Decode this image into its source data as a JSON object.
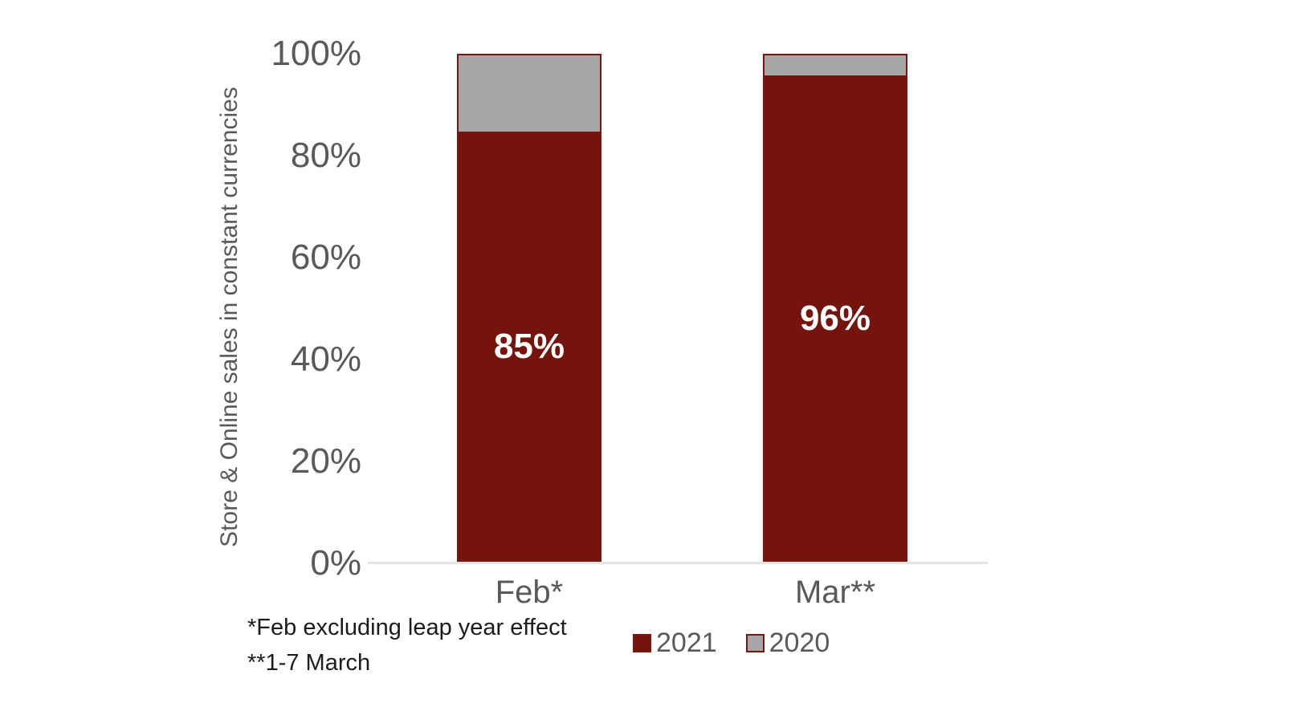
{
  "chart_data": {
    "type": "bar",
    "subtype": "stacked-100-percent",
    "title": "",
    "ylabel": "Store & Online sales in constant currencies",
    "xlabel": "",
    "categories": [
      "Feb*",
      "Mar**"
    ],
    "series": [
      {
        "name": "2021",
        "values": [
          85,
          96
        ],
        "color": "#74140c"
      },
      {
        "name": "2020",
        "values": [
          15,
          4
        ],
        "color": "#a6a6a6"
      }
    ],
    "data_labels": [
      "85%",
      "96%"
    ],
    "yticks": [
      {
        "value": 0,
        "label": "0%"
      },
      {
        "value": 20,
        "label": "20%"
      },
      {
        "value": 40,
        "label": "40%"
      },
      {
        "value": 60,
        "label": "60%"
      },
      {
        "value": 80,
        "label": "80%"
      },
      {
        "value": 100,
        "label": "100%"
      }
    ],
    "ylim": [
      0,
      100
    ],
    "grid": "off",
    "legend_position": "bottom",
    "bar_border_color": "#7d150d",
    "axis_line_color": "#e2e2e2",
    "axis_text_color": "#595959",
    "label_text_color": "#ffffff"
  },
  "footnotes": {
    "line1": "*Feb excluding leap year effect",
    "line2": "**1-7 March"
  }
}
